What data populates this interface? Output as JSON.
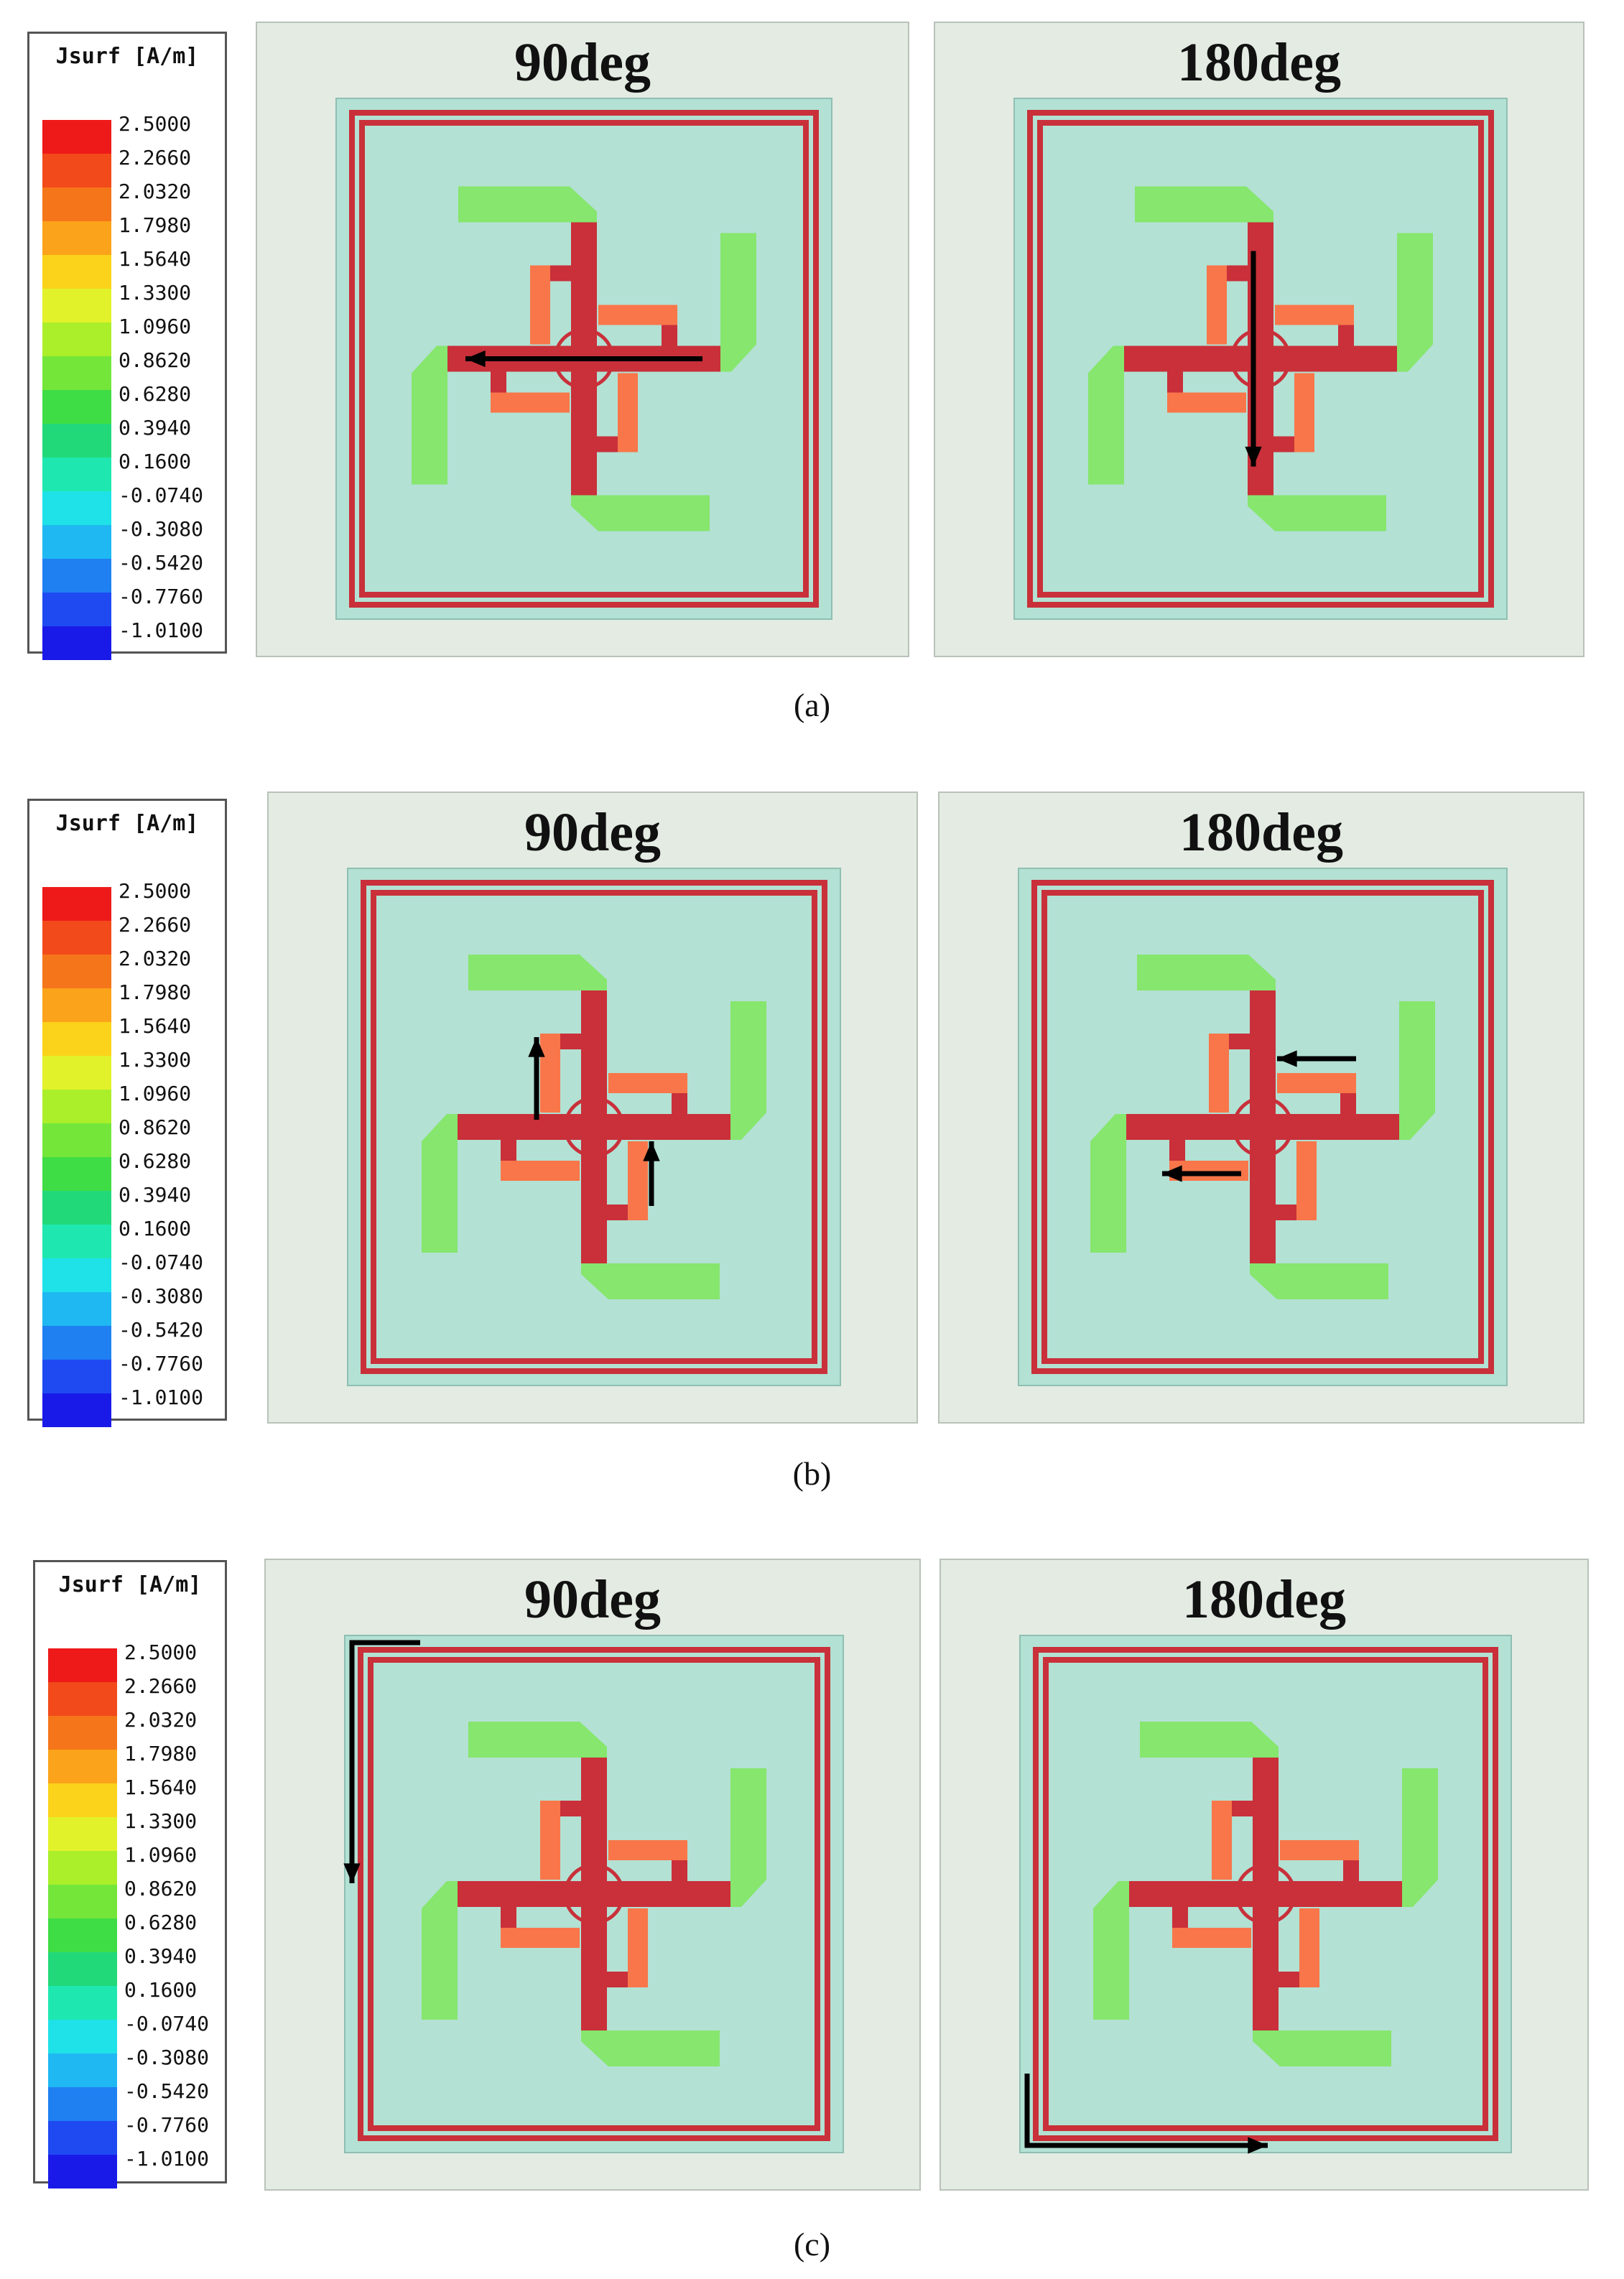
{
  "legend": {
    "title": "Jsurf [A/m]",
    "labels": [
      "2.5000",
      "2.2660",
      "2.0320",
      "1.7980",
      "1.5640",
      "1.3300",
      "1.0960",
      "0.8620",
      "0.6280",
      "0.3940",
      "0.1600",
      "-0.0740",
      "-0.3080",
      "-0.5420",
      "-0.7760",
      "-1.0100"
    ],
    "colors": [
      "#ee1a1a",
      "#f24a1a",
      "#f5761a",
      "#fba31a",
      "#fbd31a",
      "#e2f22a",
      "#aaef2a",
      "#74e63a",
      "#3fdd45",
      "#22d97a",
      "#1ee8b0",
      "#1ee2e8",
      "#1fb8f2",
      "#1f80f2",
      "#1f4af2",
      "#1a1ae8"
    ]
  },
  "panel_titles": {
    "left": "90deg",
    "right": "180deg"
  },
  "colors": {
    "panel_bg": "#e3ebe3",
    "substrate": "#b3e1d4",
    "trace": "#c9303a",
    "trace_alt": "#ff6a3a",
    "weak": "#7ee65a",
    "arrow": "#000000"
  },
  "rows": [
    {
      "caption": "(a)"
    },
    {
      "caption": "(b)"
    },
    {
      "caption": "(c)"
    }
  ]
}
